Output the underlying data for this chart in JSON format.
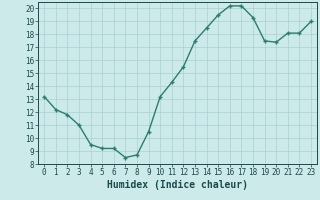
{
  "x": [
    0,
    1,
    2,
    3,
    4,
    5,
    6,
    7,
    8,
    9,
    10,
    11,
    12,
    13,
    14,
    15,
    16,
    17,
    18,
    19,
    20,
    21,
    22,
    23
  ],
  "y": [
    13.2,
    12.2,
    11.8,
    11.0,
    9.5,
    9.2,
    9.2,
    8.5,
    8.7,
    10.5,
    13.2,
    14.3,
    15.5,
    17.5,
    18.5,
    19.5,
    20.2,
    20.2,
    19.3,
    17.5,
    17.4,
    18.1,
    18.1,
    19.0
  ],
  "line_color": "#2d7d6e",
  "marker": "+",
  "marker_size": 3.5,
  "marker_linewidth": 1.0,
  "bg_color": "#cceaea",
  "grid_color": "#aacfcf",
  "xlabel": "Humidex (Indice chaleur)",
  "xlim": [
    -0.5,
    23.5
  ],
  "ylim": [
    8,
    20.5
  ],
  "yticks": [
    8,
    9,
    10,
    11,
    12,
    13,
    14,
    15,
    16,
    17,
    18,
    19,
    20
  ],
  "xticks": [
    0,
    1,
    2,
    3,
    4,
    5,
    6,
    7,
    8,
    9,
    10,
    11,
    12,
    13,
    14,
    15,
    16,
    17,
    18,
    19,
    20,
    21,
    22,
    23
  ],
  "tick_fontsize": 5.5,
  "xlabel_fontsize": 7,
  "tick_color": "#1a4a4a",
  "axis_color": "#1a4a4a",
  "linewidth": 1.0
}
